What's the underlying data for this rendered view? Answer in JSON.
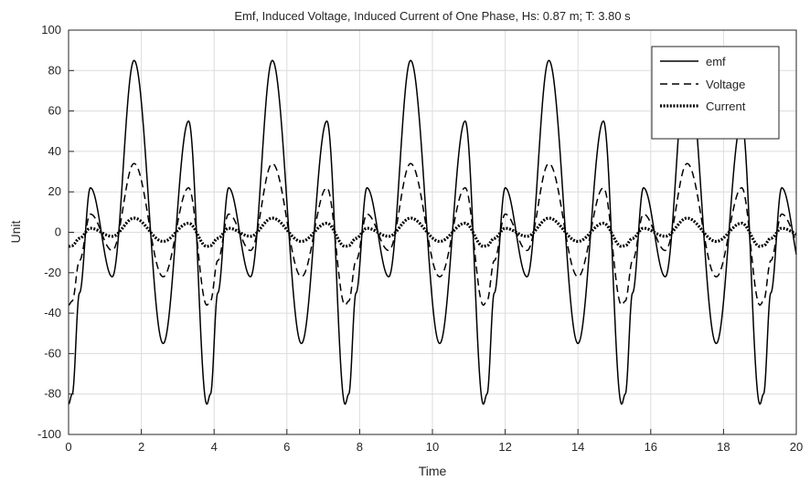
{
  "chart_data": {
    "type": "line",
    "title": "Emf, Induced Voltage, Induced Current of One Phase, Hs: 0.87 m; T: 3.80 s",
    "xlabel": "Time",
    "ylabel": "Unit",
    "xlim": [
      0,
      20
    ],
    "ylim": [
      -100,
      100
    ],
    "x_ticks": [
      0,
      2,
      4,
      6,
      8,
      10,
      12,
      14,
      16,
      18,
      20
    ],
    "y_ticks": [
      -100,
      -80,
      -60,
      -40,
      -20,
      0,
      20,
      40,
      60,
      80,
      100
    ],
    "grid": true,
    "legend_position": "top-right",
    "period": 3.8,
    "x": [
      0,
      0.1,
      0.3,
      0.6,
      1.2,
      1.8,
      2.6,
      3.3,
      3.8
    ],
    "series": [
      {
        "name": "emf",
        "style": "solid",
        "color": "#000000",
        "values": [
          -85,
          -80,
          -30,
          22,
          -22,
          85,
          -55,
          55,
          -85
        ]
      },
      {
        "name": "Voltage",
        "style": "dashed",
        "color": "#000000",
        "values": [
          -36,
          -34,
          -14,
          9,
          -9,
          34,
          -22,
          22,
          -36
        ]
      },
      {
        "name": "Current",
        "style": "dotted",
        "color": "#000000",
        "values": [
          -7,
          -6.6,
          -3,
          2,
          -2,
          7,
          -4.5,
          4.5,
          -7
        ]
      }
    ]
  }
}
